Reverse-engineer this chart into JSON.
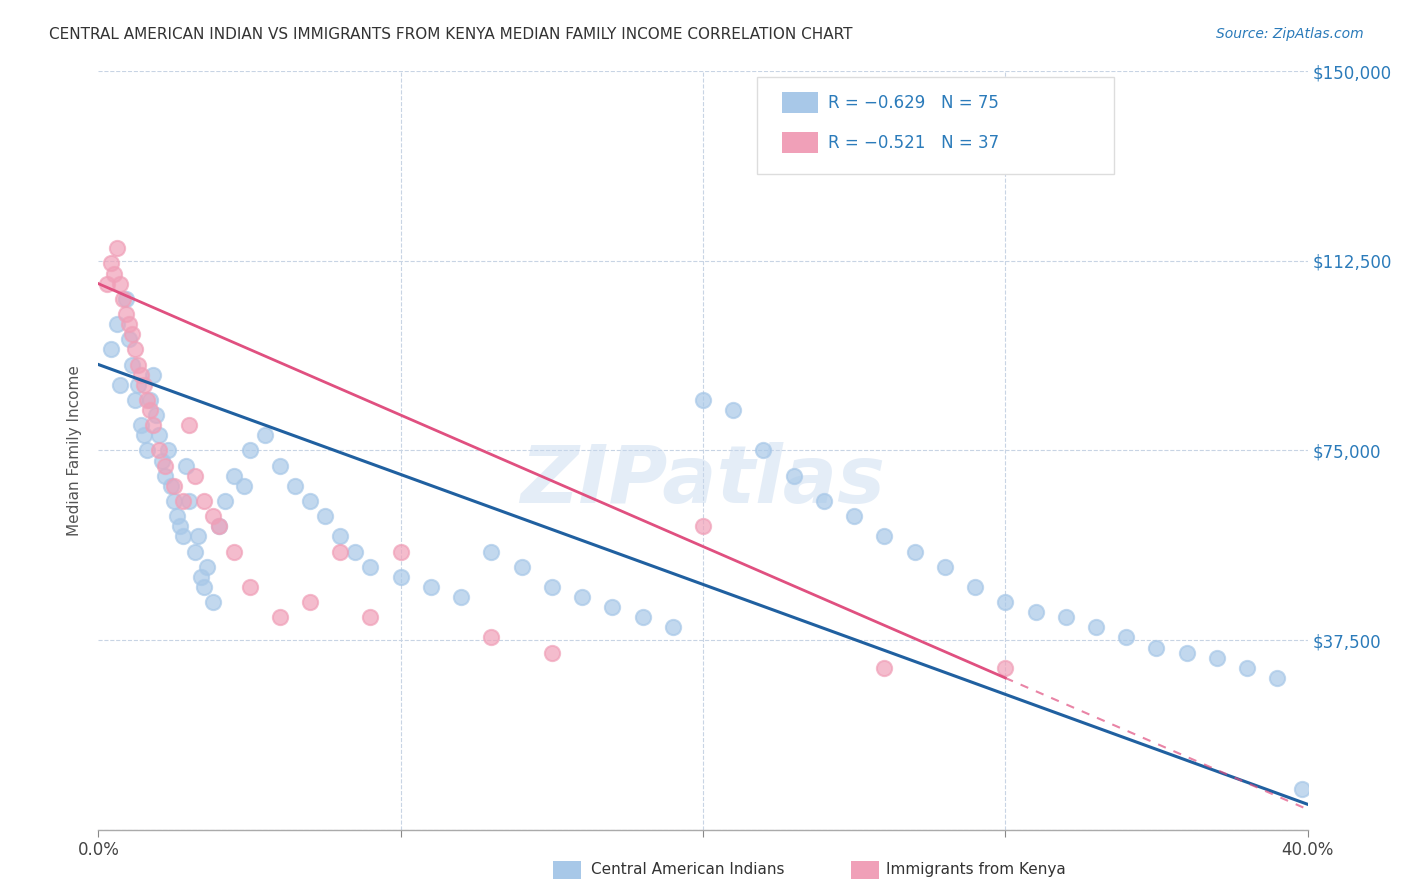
{
  "title": "CENTRAL AMERICAN INDIAN VS IMMIGRANTS FROM KENYA MEDIAN FAMILY INCOME CORRELATION CHART",
  "source": "Source: ZipAtlas.com",
  "ylabel": "Median Family Income",
  "y_ticks": [
    0,
    37500,
    75000,
    112500,
    150000
  ],
  "y_tick_labels": [
    "",
    "$37,500",
    "$75,000",
    "$112,500",
    "$150,000"
  ],
  "xlim": [
    0.0,
    0.4
  ],
  "ylim": [
    0,
    150000
  ],
  "legend_r1": "R = −0.629",
  "legend_n1": "N = 75",
  "legend_r2": "R = −0.521",
  "legend_n2": "N = 37",
  "color_blue": "#a8c8e8",
  "color_pink": "#f0a0b8",
  "color_line_blue": "#2060a0",
  "color_line_pink": "#e05080",
  "watermark": "ZIPatlas",
  "scatter_blue_x": [
    0.004,
    0.006,
    0.007,
    0.009,
    0.01,
    0.011,
    0.012,
    0.013,
    0.014,
    0.015,
    0.016,
    0.017,
    0.018,
    0.019,
    0.02,
    0.021,
    0.022,
    0.023,
    0.024,
    0.025,
    0.026,
    0.027,
    0.028,
    0.029,
    0.03,
    0.032,
    0.033,
    0.034,
    0.035,
    0.036,
    0.038,
    0.04,
    0.042,
    0.045,
    0.048,
    0.05,
    0.055,
    0.06,
    0.065,
    0.07,
    0.075,
    0.08,
    0.085,
    0.09,
    0.1,
    0.11,
    0.12,
    0.13,
    0.14,
    0.15,
    0.16,
    0.17,
    0.18,
    0.19,
    0.2,
    0.21,
    0.22,
    0.23,
    0.24,
    0.25,
    0.26,
    0.27,
    0.28,
    0.29,
    0.3,
    0.31,
    0.32,
    0.33,
    0.34,
    0.35,
    0.36,
    0.37,
    0.38,
    0.39,
    0.398
  ],
  "scatter_blue_y": [
    95000,
    100000,
    88000,
    105000,
    97000,
    92000,
    85000,
    88000,
    80000,
    78000,
    75000,
    85000,
    90000,
    82000,
    78000,
    73000,
    70000,
    75000,
    68000,
    65000,
    62000,
    60000,
    58000,
    72000,
    65000,
    55000,
    58000,
    50000,
    48000,
    52000,
    45000,
    60000,
    65000,
    70000,
    68000,
    75000,
    78000,
    72000,
    68000,
    65000,
    62000,
    58000,
    55000,
    52000,
    50000,
    48000,
    46000,
    55000,
    52000,
    48000,
    46000,
    44000,
    42000,
    40000,
    85000,
    83000,
    75000,
    70000,
    65000,
    62000,
    58000,
    55000,
    52000,
    48000,
    45000,
    43000,
    42000,
    40000,
    38000,
    36000,
    35000,
    34000,
    32000,
    30000,
    8000
  ],
  "scatter_pink_x": [
    0.003,
    0.004,
    0.005,
    0.006,
    0.007,
    0.008,
    0.009,
    0.01,
    0.011,
    0.012,
    0.013,
    0.014,
    0.015,
    0.016,
    0.017,
    0.018,
    0.02,
    0.022,
    0.025,
    0.028,
    0.03,
    0.032,
    0.035,
    0.038,
    0.04,
    0.045,
    0.05,
    0.06,
    0.07,
    0.08,
    0.09,
    0.1,
    0.13,
    0.15,
    0.2,
    0.26,
    0.3
  ],
  "scatter_pink_y": [
    108000,
    112000,
    110000,
    115000,
    108000,
    105000,
    102000,
    100000,
    98000,
    95000,
    92000,
    90000,
    88000,
    85000,
    83000,
    80000,
    75000,
    72000,
    68000,
    65000,
    80000,
    70000,
    65000,
    62000,
    60000,
    55000,
    48000,
    42000,
    45000,
    55000,
    42000,
    55000,
    38000,
    35000,
    60000,
    32000,
    32000
  ]
}
